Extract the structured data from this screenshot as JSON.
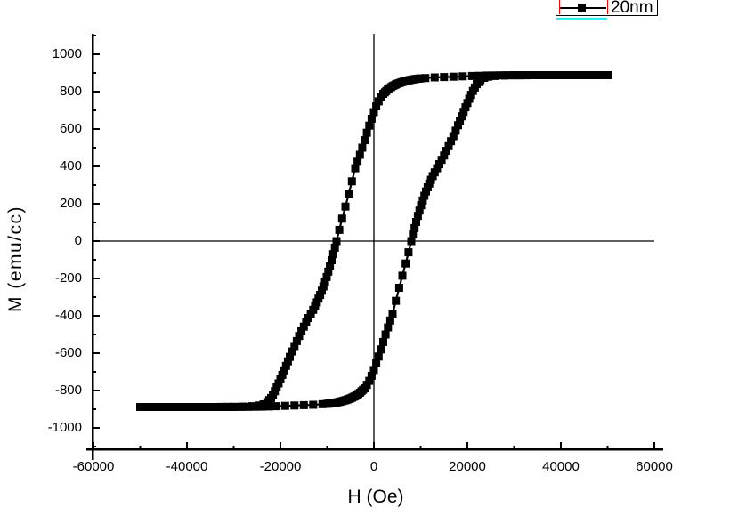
{
  "window": {
    "background": "#ffffff"
  },
  "legend": {
    "label": "20nm",
    "marker": "filled-square",
    "line_sample": true,
    "border_color": "#000000",
    "divider_color": "#ff0000",
    "underline_color": "#00ffff",
    "position": "top-right, partially cut off by top edge of image"
  },
  "chart_data": {
    "type": "line",
    "title": "",
    "xlabel": "H (Oe)",
    "ylabel": "M (emu/cc)",
    "xlim": [
      -60000,
      60000
    ],
    "ylim": [
      -1100,
      1100
    ],
    "grid": false,
    "zero_axis_lines": true,
    "x_tick_labels": [
      "-60000",
      "-40000",
      "-20000",
      "0",
      "20000",
      "40000",
      "60000"
    ],
    "x_tick_values": [
      -60000,
      -40000,
      -20000,
      0,
      20000,
      40000,
      60000
    ],
    "x_minor_tick_values": [
      -50000,
      -30000,
      -10000,
      10000,
      30000,
      50000
    ],
    "y_tick_labels": [
      "1000",
      "800",
      "600",
      "400",
      "200",
      "0",
      "-200",
      "-400",
      "-600",
      "-800",
      "-1000"
    ],
    "y_tick_values": [
      1000,
      800,
      600,
      400,
      200,
      0,
      -200,
      -400,
      -600,
      -800,
      -1000
    ],
    "y_minor_tick_values": [
      1100,
      900,
      700,
      500,
      300,
      100,
      -100,
      -300,
      -500,
      -700,
      -900,
      -1100
    ],
    "legend_position": "top-right",
    "series": [
      {
        "name": "20nm",
        "color": "#000000",
        "marker": "filled-square",
        "marker_size_px": 9,
        "field_range_Oe": [
          -50000,
          50000
        ],
        "saturation_magnetization_emu_cc": 888,
        "coercivity_Oe": 8000,
        "remanence_emu_cc": 690,
        "descending_branch_points": [
          [
            50000,
            888
          ],
          [
            46000,
            888
          ],
          [
            42000,
            888
          ],
          [
            38000,
            888
          ],
          [
            34000,
            888
          ],
          [
            30000,
            888
          ],
          [
            27000,
            887
          ],
          [
            24000,
            886
          ],
          [
            21000,
            884
          ],
          [
            19000,
            882
          ],
          [
            17000,
            880
          ],
          [
            15000,
            878
          ],
          [
            13000,
            876
          ],
          [
            11000,
            873
          ],
          [
            10000,
            871
          ],
          [
            9000,
            868
          ],
          [
            8000,
            864
          ],
          [
            7000,
            858
          ],
          [
            6000,
            851
          ],
          [
            5000,
            842
          ],
          [
            4000,
            830
          ],
          [
            3000,
            812
          ],
          [
            2000,
            788
          ],
          [
            1500,
            770
          ],
          [
            1000,
            748
          ],
          [
            500,
            721
          ],
          [
            0,
            690
          ],
          [
            -500,
            655
          ],
          [
            -1000,
            618
          ],
          [
            -1500,
            580
          ],
          [
            -2000,
            540
          ],
          [
            -2500,
            500
          ],
          [
            -3000,
            462
          ],
          [
            -3500,
            425
          ],
          [
            -4000,
            390
          ],
          [
            -4700,
            320
          ],
          [
            -5400,
            250
          ],
          [
            -6100,
            185
          ],
          [
            -6800,
            120
          ],
          [
            -7400,
            60
          ],
          [
            -8000,
            0
          ],
          [
            -8700,
            -70
          ],
          [
            -9400,
            -135
          ],
          [
            -10100,
            -192
          ],
          [
            -10800,
            -243
          ],
          [
            -11500,
            -288
          ],
          [
            -12200,
            -328
          ],
          [
            -13000,
            -368
          ],
          [
            -14000,
            -412
          ],
          [
            -15000,
            -458
          ],
          [
            -16000,
            -508
          ],
          [
            -17000,
            -562
          ],
          [
            -18000,
            -620
          ],
          [
            -18800,
            -668
          ],
          [
            -19600,
            -716
          ],
          [
            -20400,
            -762
          ],
          [
            -21200,
            -804
          ],
          [
            -22000,
            -840
          ],
          [
            -22800,
            -862
          ],
          [
            -23600,
            -874
          ],
          [
            -24500,
            -880
          ],
          [
            -26000,
            -884
          ],
          [
            -28000,
            -886
          ],
          [
            -30000,
            -887
          ],
          [
            -34000,
            -888
          ],
          [
            -38000,
            -888
          ],
          [
            -42000,
            -888
          ],
          [
            -46000,
            -888
          ],
          [
            -50000,
            -888
          ]
        ],
        "ascending_branch_rule": "point mirror of descending branch: (H, M) -> (-H, -M)"
      }
    ]
  }
}
